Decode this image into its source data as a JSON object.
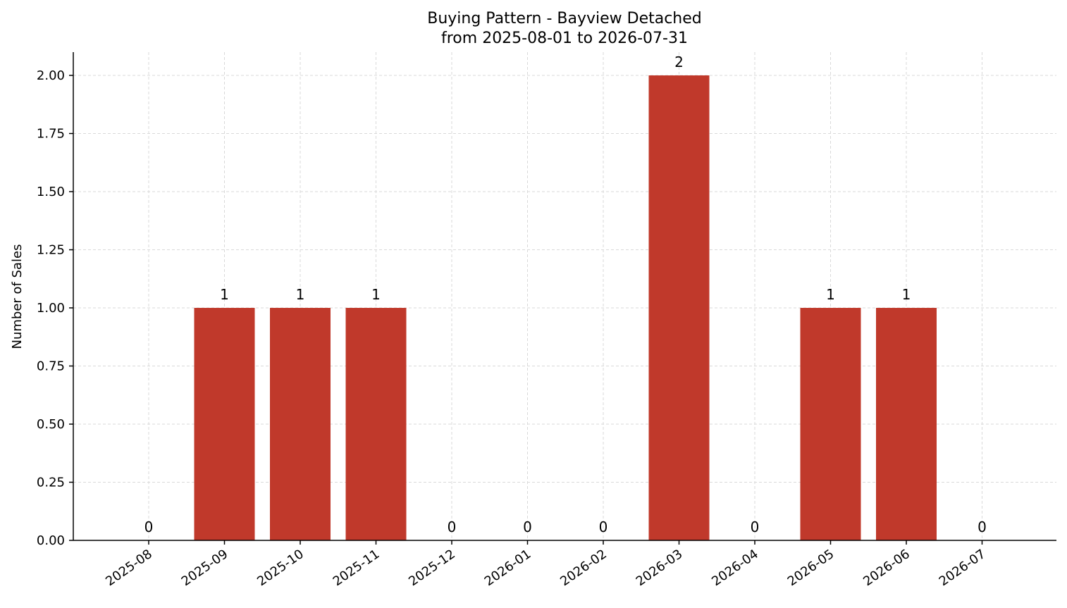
{
  "chart_data": {
    "type": "bar",
    "title": "Buying Pattern - Bayview Detached",
    "subtitle": "from 2025-08-01 to 2026-07-31",
    "xlabel": "",
    "ylabel": "Number of Sales",
    "categories": [
      "2025-08",
      "2025-09",
      "2025-10",
      "2025-11",
      "2025-12",
      "2026-01",
      "2026-02",
      "2026-03",
      "2026-04",
      "2026-05",
      "2026-06",
      "2026-07"
    ],
    "values": [
      0,
      1,
      1,
      1,
      0,
      0,
      0,
      2,
      0,
      1,
      1,
      0
    ],
    "data_labels": [
      "0",
      "1",
      "1",
      "1",
      "0",
      "0",
      "0",
      "2",
      "0",
      "1",
      "1",
      "0"
    ],
    "ylim": [
      0,
      2.1
    ],
    "yticks": [
      0,
      0.25,
      0.5,
      0.75,
      1.0,
      1.25,
      1.5,
      1.75,
      2.0
    ],
    "ytick_labels": [
      "0.00",
      "0.25",
      "0.50",
      "0.75",
      "1.00",
      "1.25",
      "1.50",
      "1.75",
      "2.00"
    ],
    "grid": true,
    "bar_color": "#c0392b",
    "grid_color": "#d9d9d9"
  }
}
